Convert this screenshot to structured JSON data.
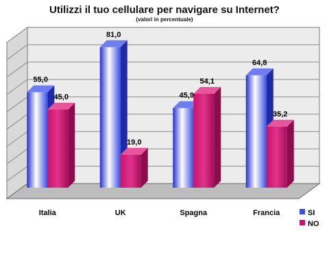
{
  "chart_data": {
    "type": "bar",
    "title": "Utilizzi il tuo cellulare per navigare su Internet?",
    "subtitle": "(valori in percentuale)",
    "categories": [
      "Italia",
      "UK",
      "Spagna",
      "Francia"
    ],
    "series": [
      {
        "name": "SI",
        "values": [
          55.0,
          81.0,
          45.9,
          64.8
        ],
        "color": "#3b4fe0"
      },
      {
        "name": "NO",
        "values": [
          45.0,
          19.0,
          54.1,
          35.2
        ],
        "color": "#c8136e"
      }
    ],
    "value_labels": {
      "SI": [
        "55,0",
        "81,0",
        "45,9",
        "64,8"
      ],
      "NO": [
        "45,0",
        "19,0",
        "54,1",
        "35,2"
      ]
    },
    "ylim": [
      0,
      90
    ],
    "grid": true,
    "legend_position": "bottom-right",
    "style": "3d-cylinder-bars"
  }
}
